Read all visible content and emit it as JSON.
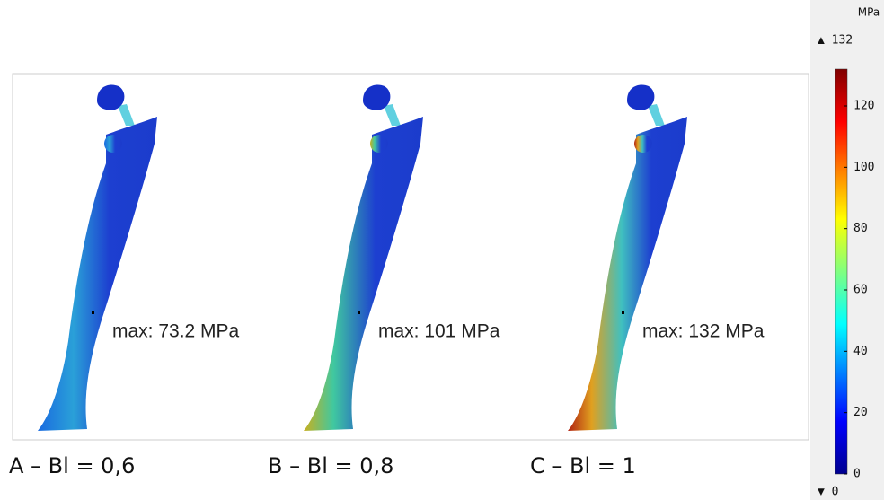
{
  "panels": [
    {
      "label": "A – Bl = 0,6",
      "max": "max: 73.2 MPa"
    },
    {
      "label": "B – Bl = 0,8",
      "max": "max: 101 MPa"
    },
    {
      "label": "C – Bl = 1",
      "max": "max: 132 MPa"
    }
  ],
  "colorbar": {
    "unit": "MPa",
    "max": 132,
    "min": 0,
    "max_label": "▲ 132",
    "min_label": "▼ 0",
    "ticks": [
      0,
      20,
      40,
      60,
      80,
      100,
      120
    ]
  }
}
